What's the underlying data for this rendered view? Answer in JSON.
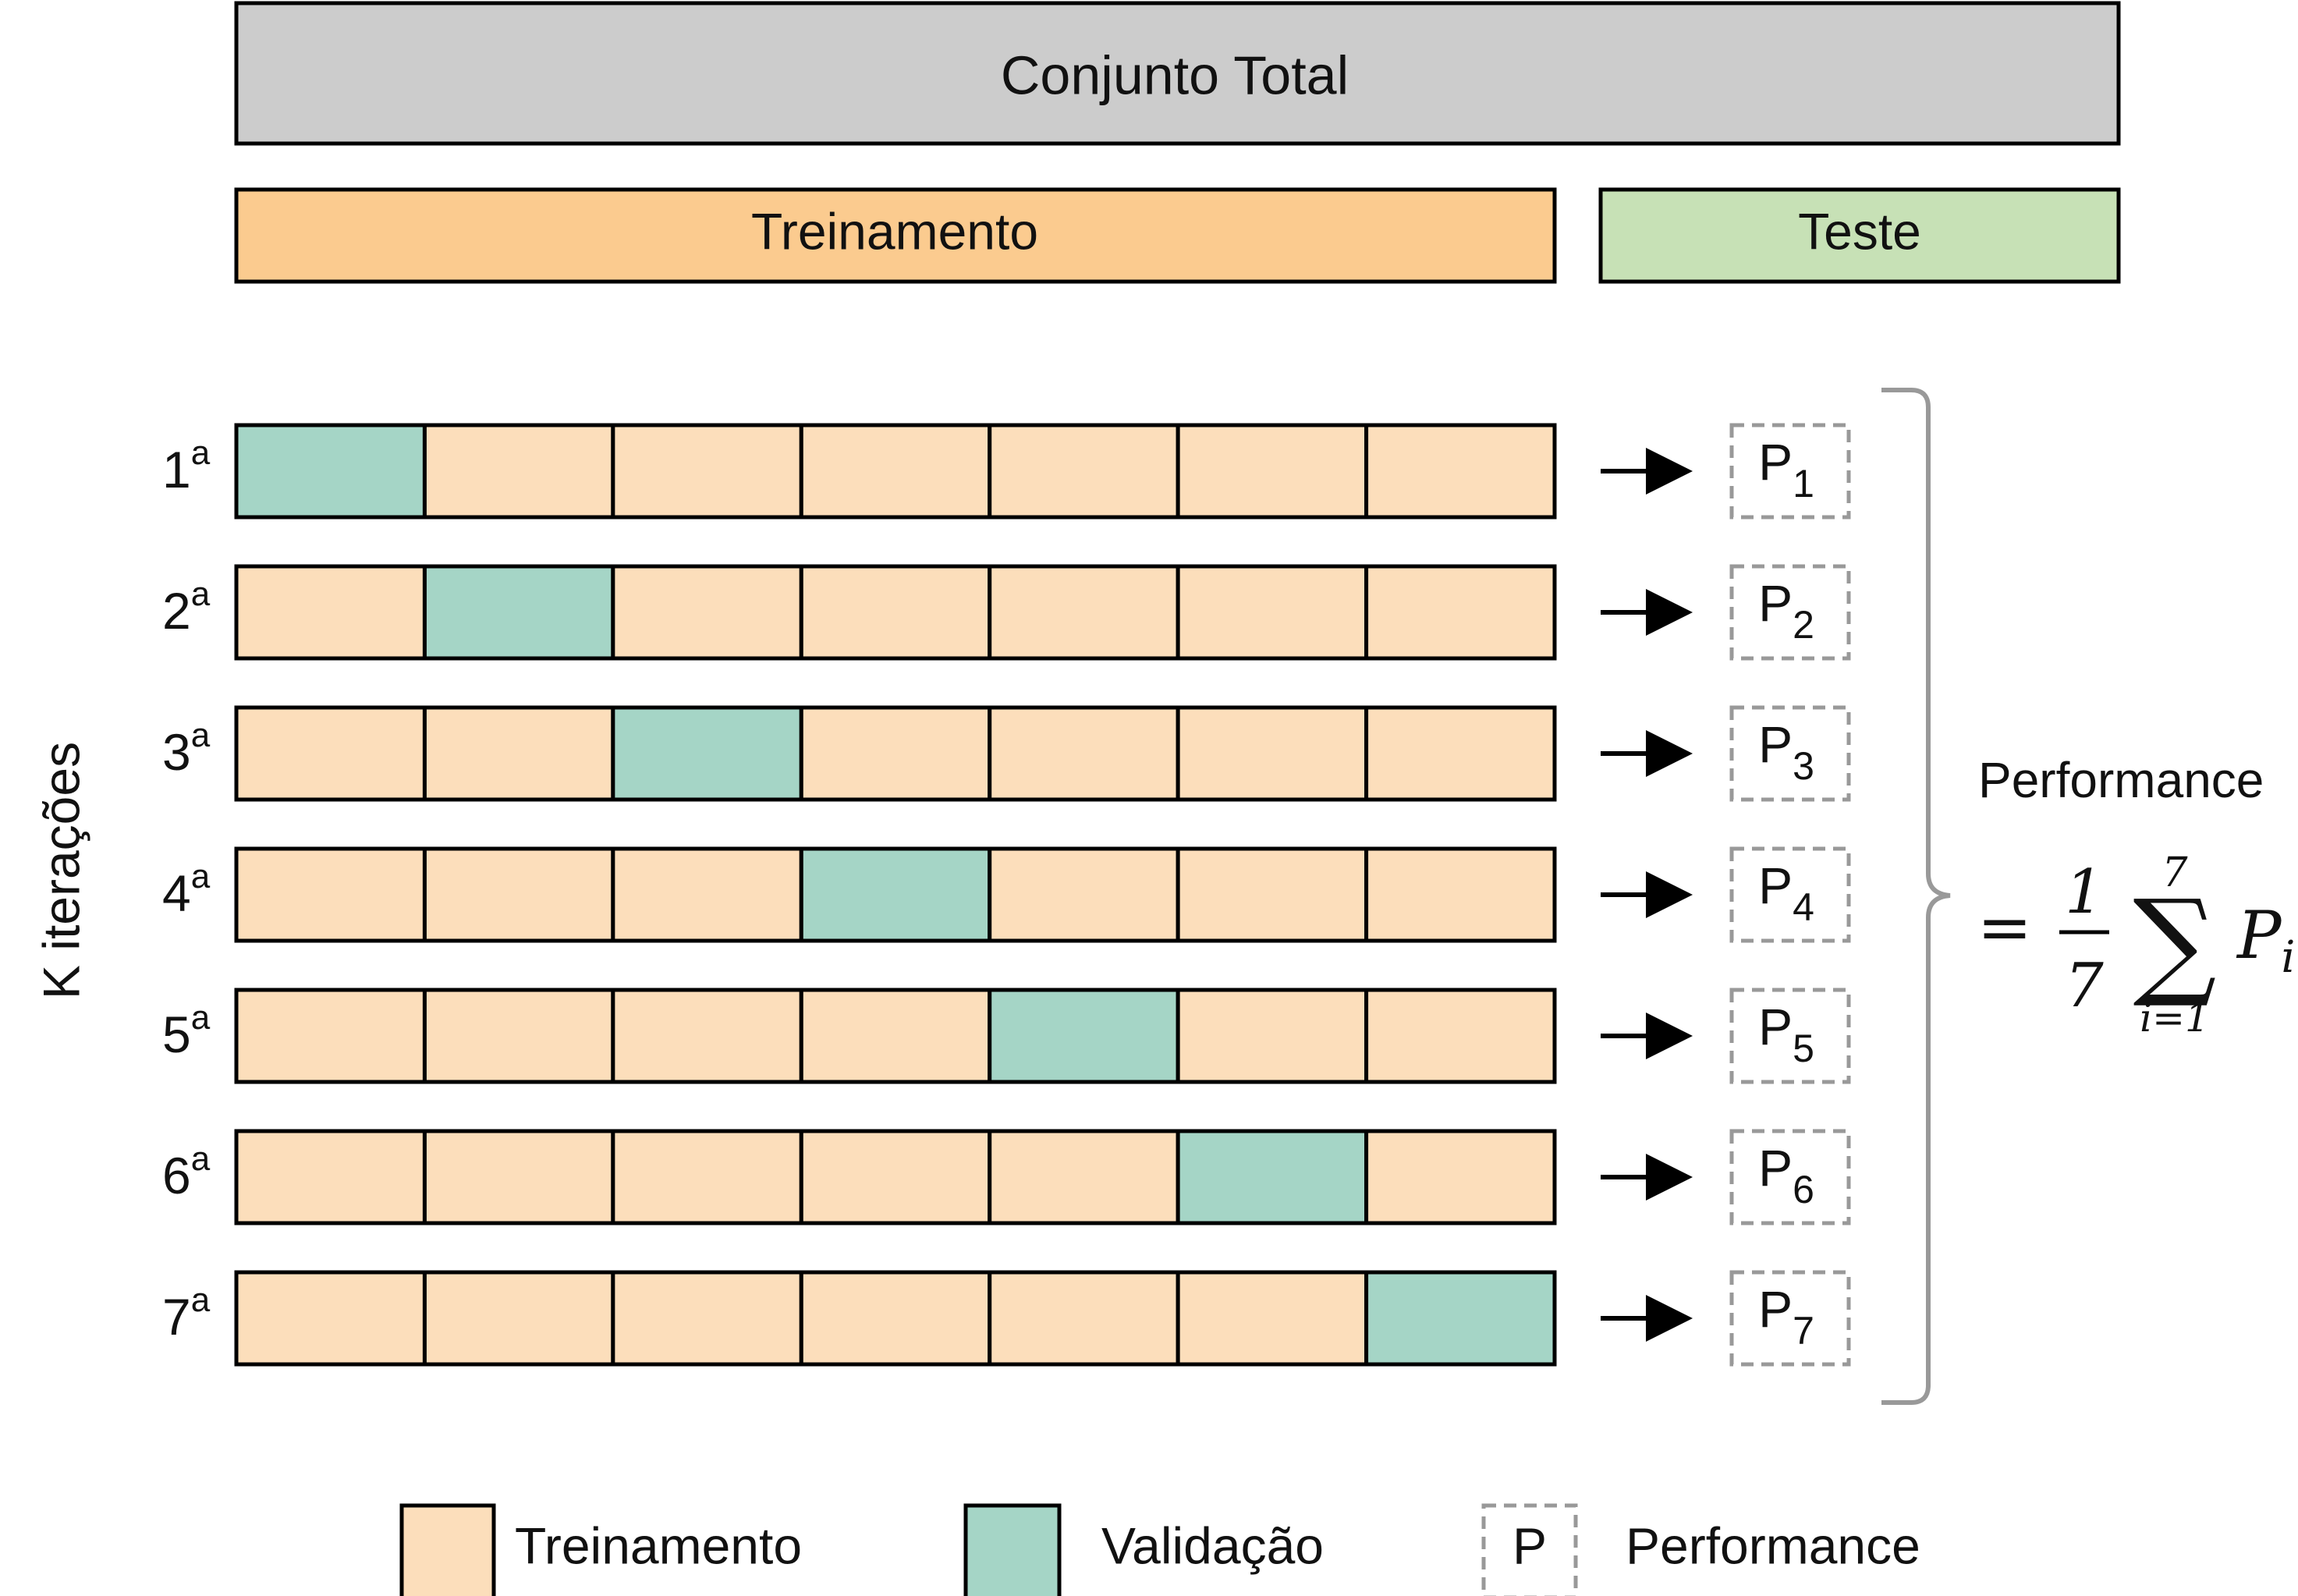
{
  "title_box": {
    "label": "Conjunto Total",
    "color": "#cccccc"
  },
  "split": {
    "train": {
      "label": "Treinamento",
      "color": "#fbcb8f"
    },
    "test": {
      "label": "Teste",
      "color": "#c7e1b6"
    }
  },
  "axis_label": "K iterações",
  "fold_colors": {
    "train": "#fcdebb",
    "validation": "#a5d5c6"
  },
  "folds_per_row": 7,
  "iterations": [
    {
      "ordinal": "1",
      "sup": "a",
      "validation_fold": 1,
      "p": "P",
      "sub": "1"
    },
    {
      "ordinal": "2",
      "sup": "a",
      "validation_fold": 2,
      "p": "P",
      "sub": "2"
    },
    {
      "ordinal": "3",
      "sup": "a",
      "validation_fold": 3,
      "p": "P",
      "sub": "3"
    },
    {
      "ordinal": "4",
      "sup": "a",
      "validation_fold": 4,
      "p": "P",
      "sub": "4"
    },
    {
      "ordinal": "5",
      "sup": "a",
      "validation_fold": 5,
      "p": "P",
      "sub": "5"
    },
    {
      "ordinal": "6",
      "sup": "a",
      "validation_fold": 6,
      "p": "P",
      "sub": "6"
    },
    {
      "ordinal": "7",
      "sup": "a",
      "validation_fold": 7,
      "p": "P",
      "sub": "7"
    }
  ],
  "performance": {
    "title": "Performance",
    "formula": {
      "equals": "=",
      "numerator": "1",
      "denominator": "7",
      "sigma": "∑",
      "upper": "7",
      "lower": "i=1",
      "term": "P",
      "term_sub": "i"
    }
  },
  "legend": {
    "train": "Treinamento",
    "validation": "Validação",
    "perf_symbol": "P",
    "perf": "Performance"
  }
}
